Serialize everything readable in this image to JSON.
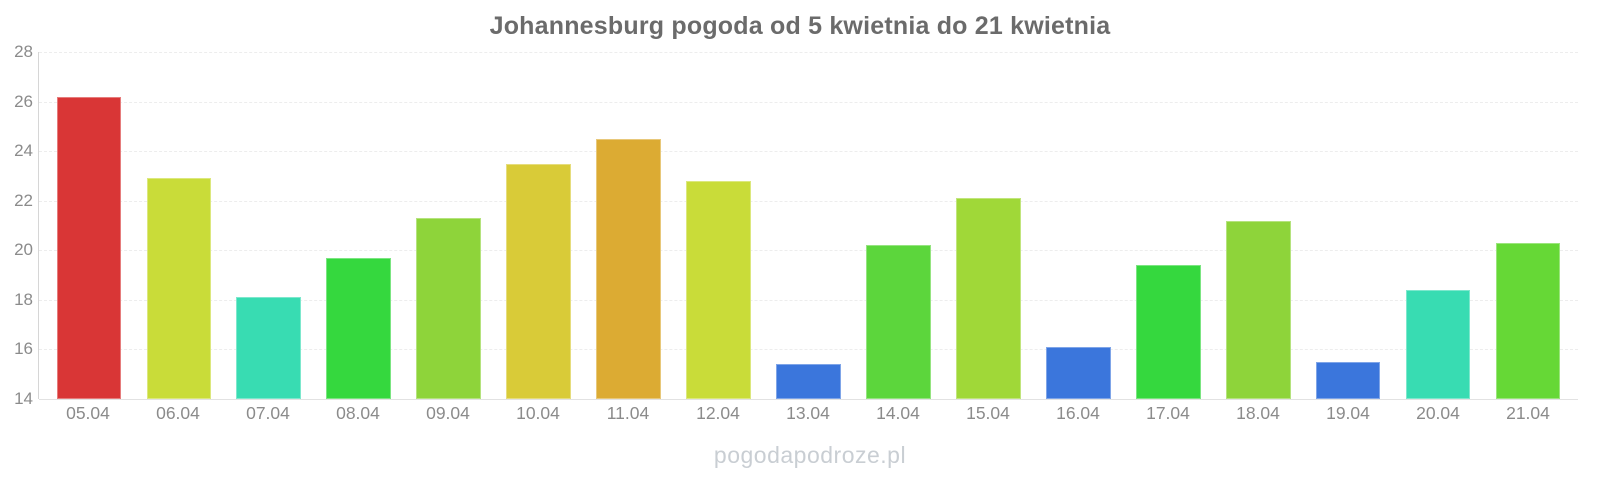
{
  "watermark": "pogodapodroze.pl",
  "chart_data": {
    "type": "bar",
    "title": "Johannesburg pogoda od 5 kwietnia do 21 kwietnia",
    "xlabel": "",
    "ylabel": "",
    "categories": [
      "05.04",
      "06.04",
      "07.04",
      "08.04",
      "09.04",
      "10.04",
      "11.04",
      "12.04",
      "13.04",
      "14.04",
      "15.04",
      "16.04",
      "17.04",
      "18.04",
      "19.04",
      "20.04",
      "21.04"
    ],
    "values": [
      26.2,
      22.9,
      18.1,
      19.7,
      21.3,
      23.5,
      24.5,
      22.8,
      15.4,
      20.2,
      22.1,
      16.1,
      19.4,
      21.2,
      15.5,
      18.4,
      20.3
    ],
    "bar_colors": [
      "#d93636",
      "#c9dc39",
      "#38dcb2",
      "#35d83e",
      "#8ed43a",
      "#d9cb38",
      "#dcab33",
      "#c9dc39",
      "#3b76dc",
      "#5cd63c",
      "#a0d838",
      "#3b76dc",
      "#35d83e",
      "#8ed43a",
      "#3b76dc",
      "#38dcb2",
      "#66d836"
    ],
    "ylim": [
      14,
      28
    ],
    "yticks": [
      28,
      26,
      24,
      22,
      20,
      18,
      16,
      14
    ],
    "grid": "horizontal-dashed",
    "legend": "none",
    "colors": {
      "title": "#6b6b6b",
      "axis_labels": "#8b8b8b",
      "watermark": "#c9ced3"
    }
  }
}
